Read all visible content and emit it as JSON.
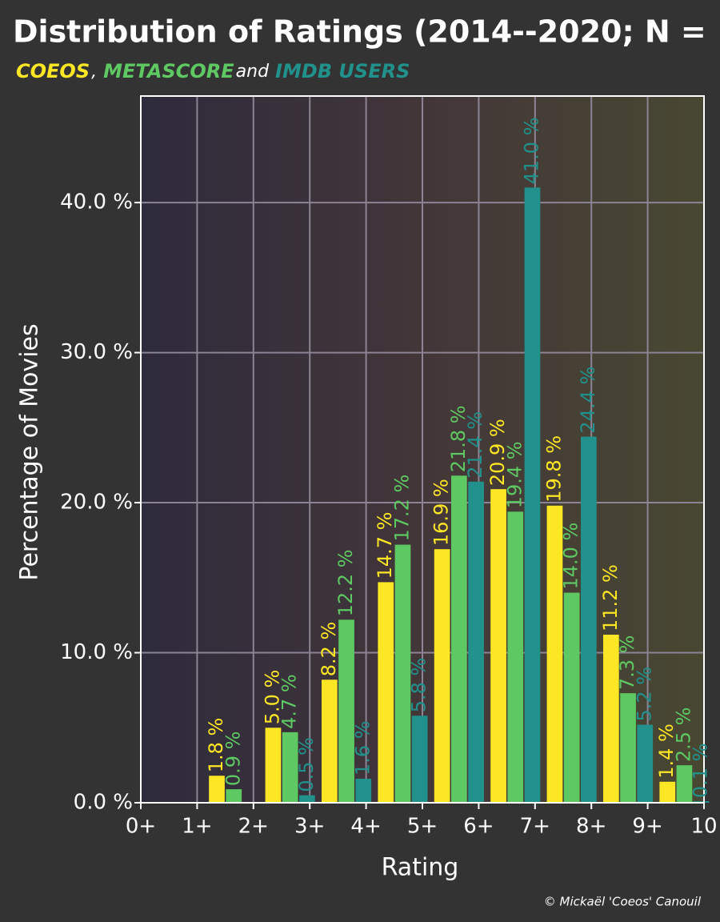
{
  "chart_data": {
    "type": "bar",
    "title": "Distribution of Ratings (2014--2020; N =",
    "legend_separators": [
      ",",
      "and"
    ],
    "credit": "© Mickaël 'Coeos' Canouil",
    "xlabel": "Rating",
    "ylabel": "Percentage of Movies",
    "categories": [
      "0+",
      "1+",
      "2+",
      "3+",
      "4+",
      "5+",
      "6+",
      "7+",
      "8+",
      "9+"
    ],
    "xlim": [
      0,
      10
    ],
    "xticks": [
      {
        "value": 0,
        "label": "0+"
      },
      {
        "value": 1,
        "label": "1+"
      },
      {
        "value": 2,
        "label": "2+"
      },
      {
        "value": 3,
        "label": "3+"
      },
      {
        "value": 4,
        "label": "4+"
      },
      {
        "value": 5,
        "label": "5+"
      },
      {
        "value": 6,
        "label": "6+"
      },
      {
        "value": 7,
        "label": "7+"
      },
      {
        "value": 8,
        "label": "8+"
      },
      {
        "value": 9,
        "label": "9+"
      },
      10
    ],
    "ylim": [
      0,
      47.1
    ],
    "yticks": [
      {
        "value": 0,
        "label": "0.0 %"
      },
      {
        "value": 10,
        "label": "10.0 %"
      },
      {
        "value": 20,
        "label": "20.0 %"
      },
      {
        "value": 30,
        "label": "30.0 %"
      },
      {
        "value": 40,
        "label": "40.0 %"
      }
    ],
    "grid": true,
    "series": [
      {
        "name": "COEOS",
        "color": "#fde725",
        "values": [
          null,
          1.8,
          5.0,
          8.2,
          14.7,
          16.9,
          20.9,
          19.8,
          11.2,
          1.4
        ],
        "value_labels": [
          null,
          "1.8 %",
          "5.0 %",
          "8.2 %",
          "14.7 %",
          "16.9 %",
          "20.9 %",
          "19.8 %",
          "11.2 %",
          "1.4 %"
        ]
      },
      {
        "name": "METASCORE",
        "color": "#5ec962",
        "values": [
          null,
          0.9,
          4.7,
          12.2,
          17.2,
          21.8,
          19.4,
          14.0,
          7.3,
          2.5
        ],
        "value_labels": [
          null,
          "0.9 %",
          "4.7 %",
          "12.2 %",
          "17.2 %",
          "21.8 %",
          "19.4 %",
          "14.0 %",
          "7.3 %",
          "2.5 %"
        ]
      },
      {
        "name": "IMDB USERS",
        "color": "#21918c",
        "values": [
          null,
          null,
          0.5,
          1.6,
          5.8,
          21.4,
          41.0,
          24.4,
          5.2,
          0.1
        ],
        "value_labels": [
          null,
          null,
          "0.5 %",
          "1.6 %",
          "5.8 %",
          "21.4 %",
          "41.0 %",
          "24.4 %",
          "5.2 %",
          "0.1 %"
        ]
      }
    ]
  }
}
